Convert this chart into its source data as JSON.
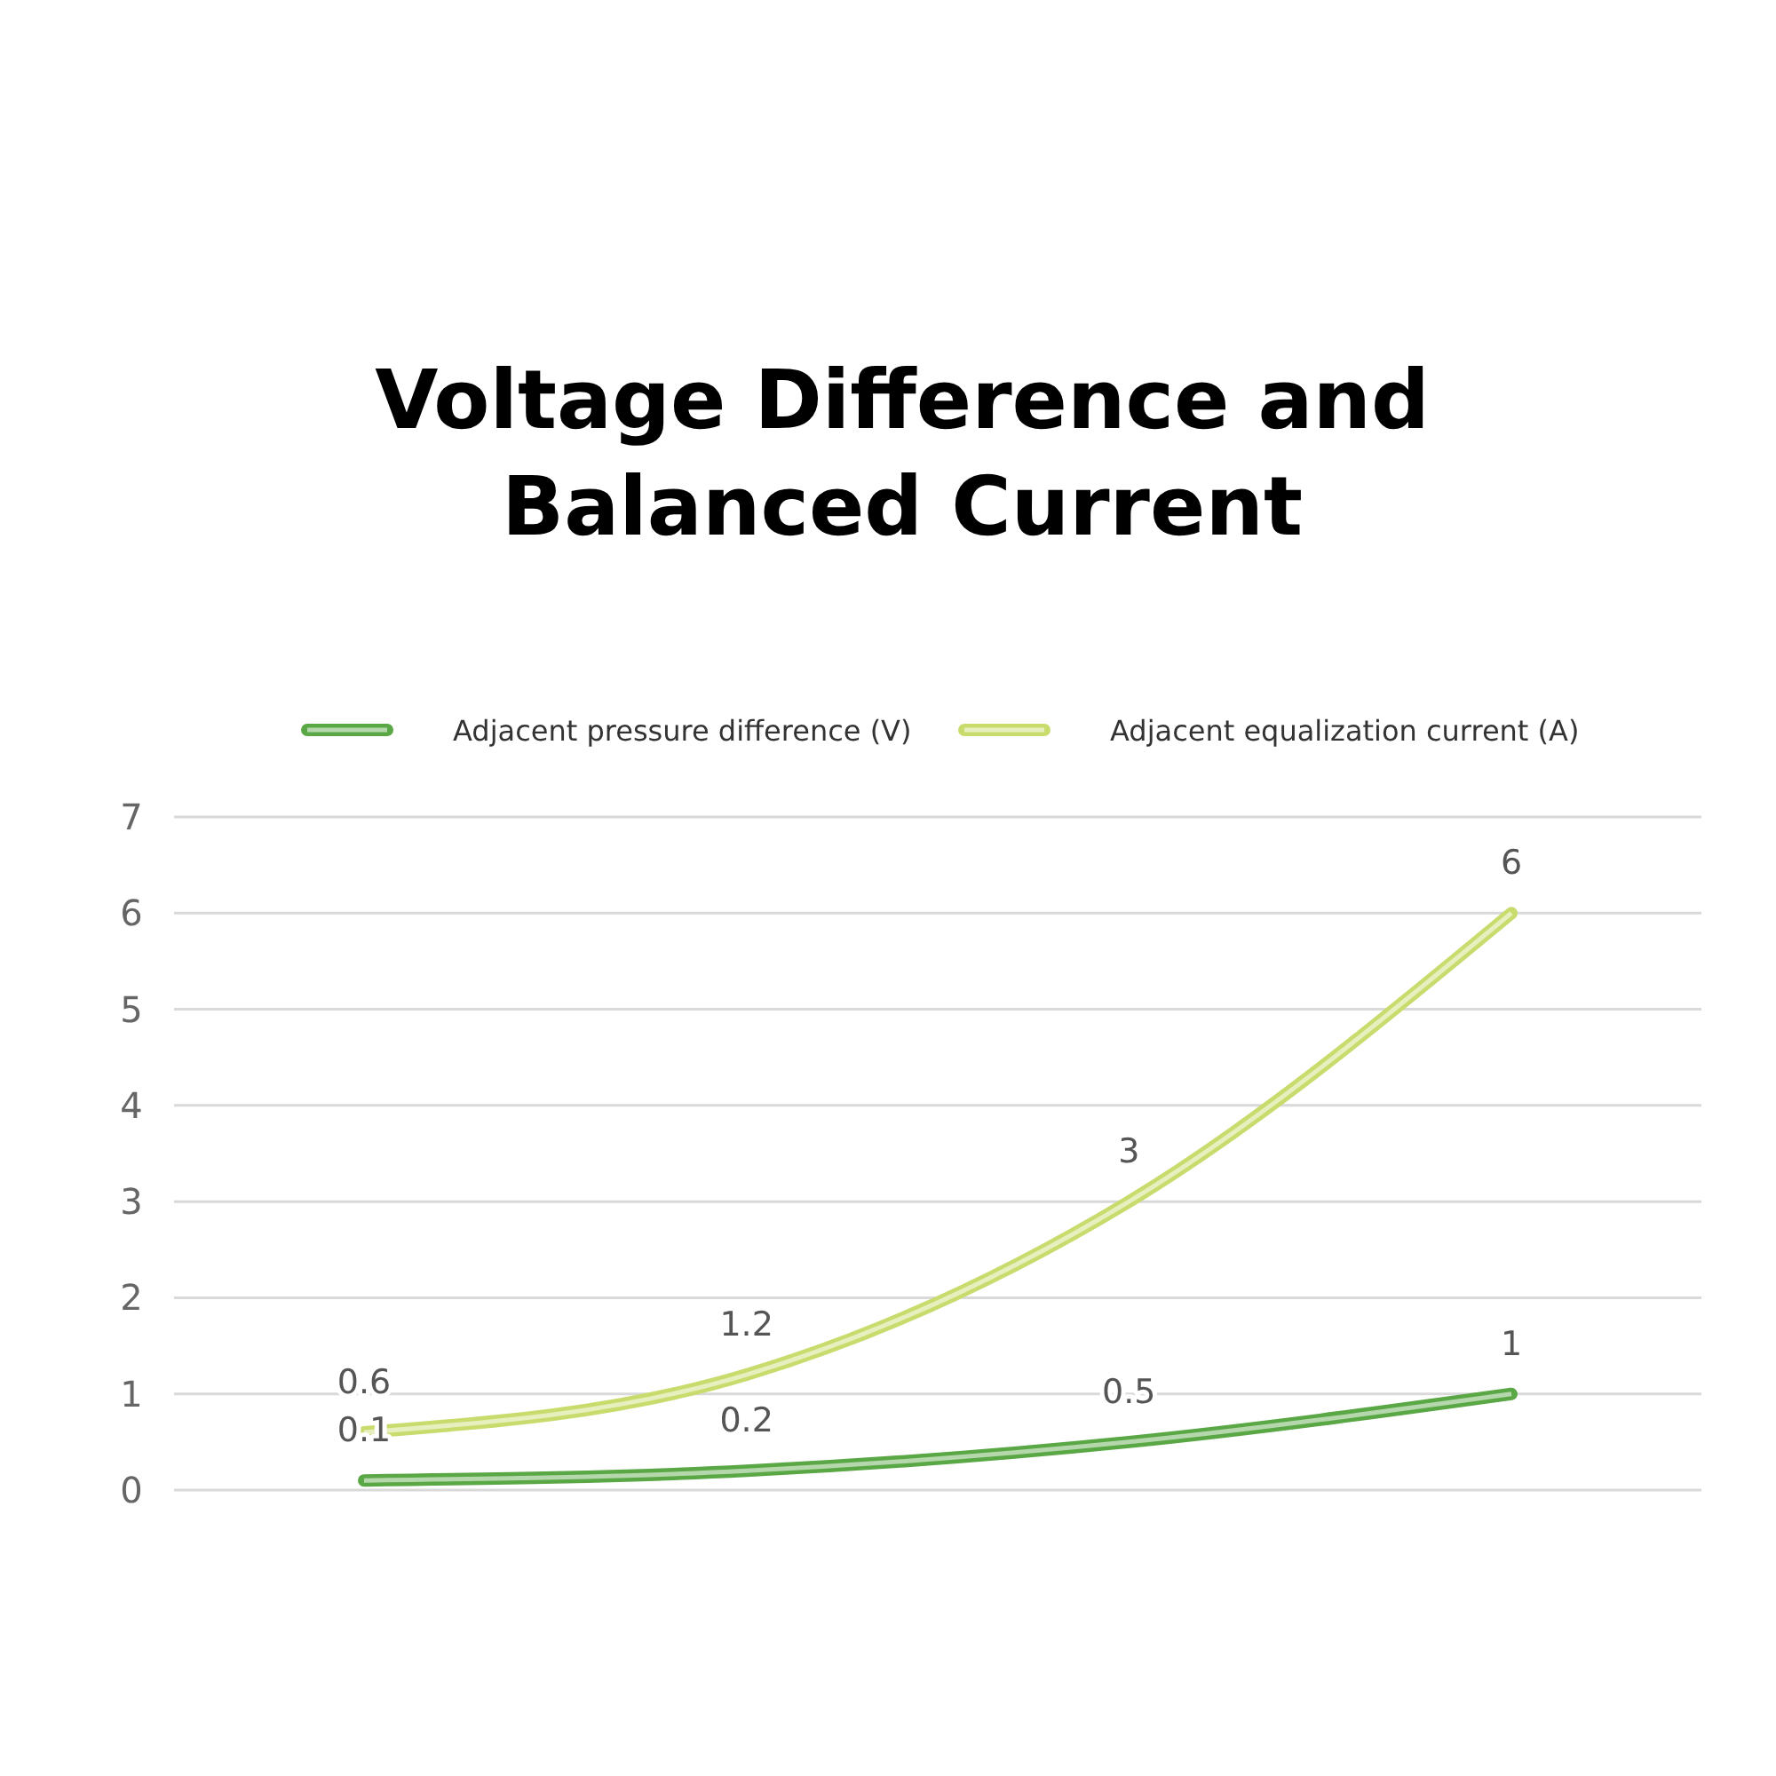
{
  "chart_data": {
    "type": "line",
    "title": "Voltage Difference and\nBalanced Current",
    "categories": [
      null,
      null,
      null,
      null
    ],
    "series": [
      {
        "name": "Adjacent pressure difference (V)",
        "color": "#5aa845",
        "values": [
          0.1,
          0.2,
          0.5,
          1
        ]
      },
      {
        "name": "Adjacent equalization current (A)",
        "color": "#c8dc6e",
        "values": [
          0.6,
          1.2,
          3,
          6
        ]
      }
    ],
    "ylim": [
      0,
      7
    ],
    "yticks": [
      0,
      1,
      2,
      3,
      4,
      5,
      6,
      7
    ],
    "grid": "y",
    "legend": "top",
    "data_labels": true,
    "marker": "none",
    "line_style": "solid"
  }
}
